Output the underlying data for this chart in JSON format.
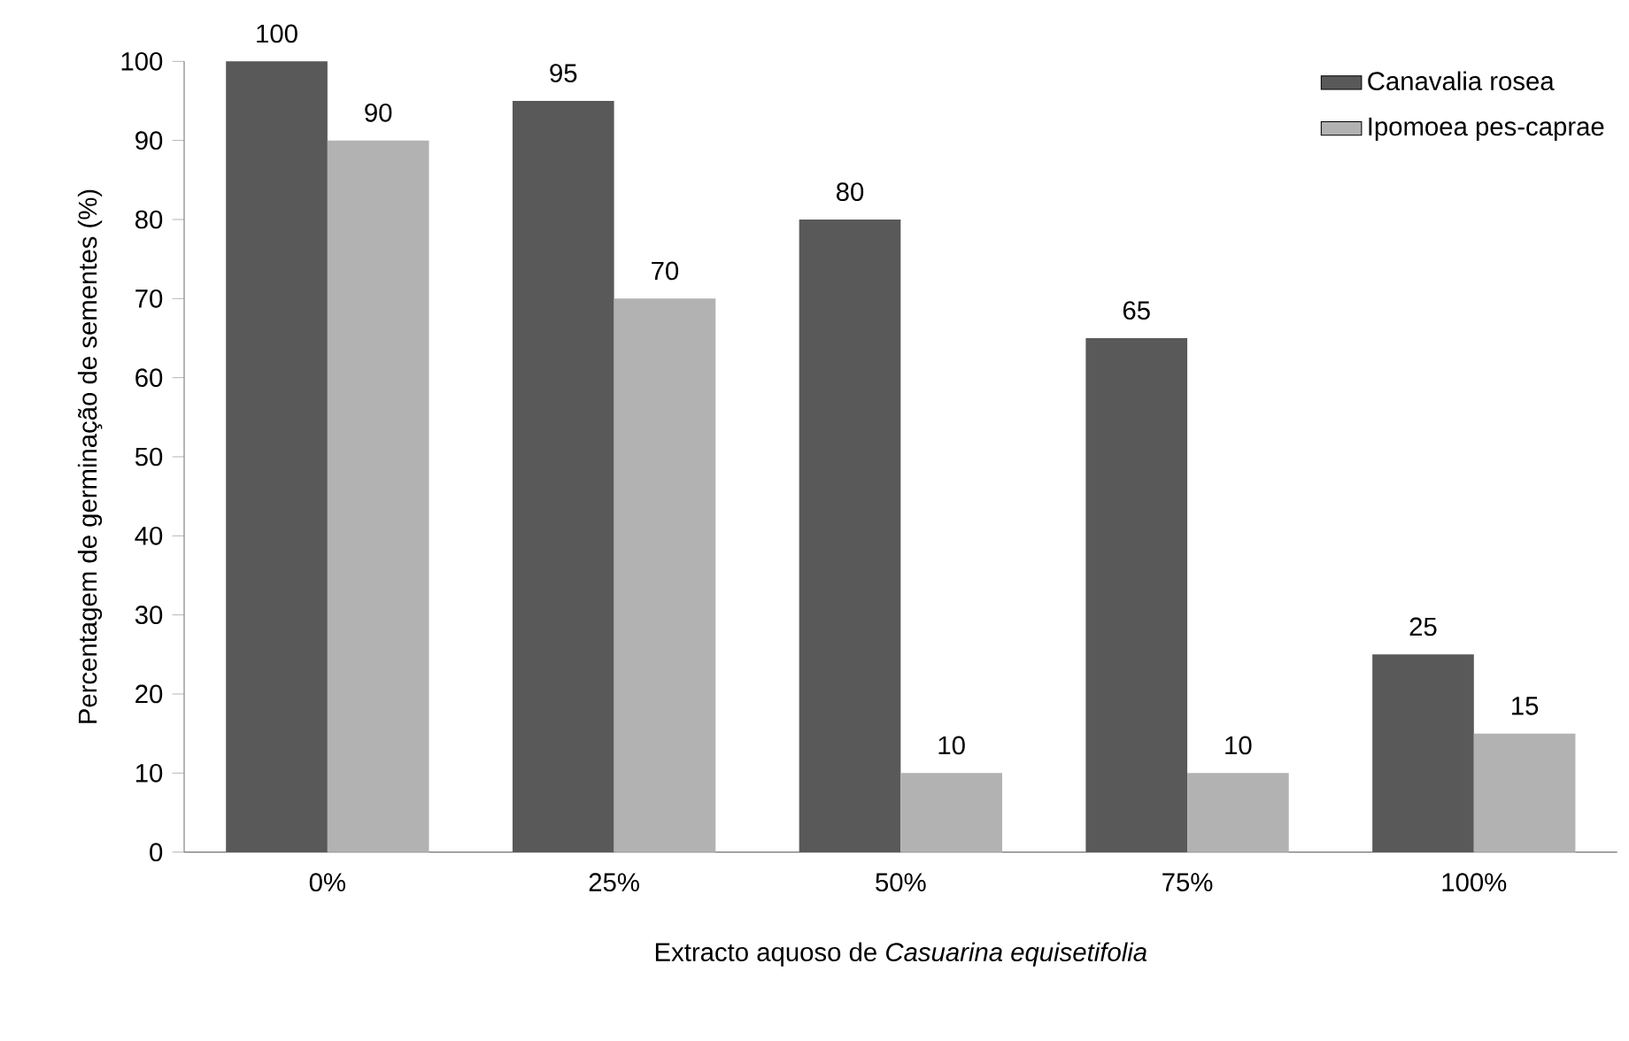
{
  "chart_data": {
    "type": "bar",
    "xlabel": "Extracto aquoso de *Casuarina equisetifolia*",
    "ylabel": "Percentagem de germinação de sementes (%)",
    "categories": [
      "0%",
      "25%",
      "50%",
      "75%",
      "100%"
    ],
    "series": [
      {
        "name": "Canavalia rosea",
        "color": "#595959",
        "values": [
          100,
          95,
          80,
          65,
          25
        ]
      },
      {
        "name": "Ipomoea pes-caprae",
        "color": "#b2b2b2",
        "values": [
          90,
          70,
          10,
          10,
          15
        ]
      }
    ],
    "ylim": [
      0,
      100
    ],
    "yticks": [
      0,
      10,
      20,
      30,
      40,
      50,
      60,
      70,
      80,
      90,
      100
    ],
    "legend": "top right",
    "data_labels": true
  }
}
